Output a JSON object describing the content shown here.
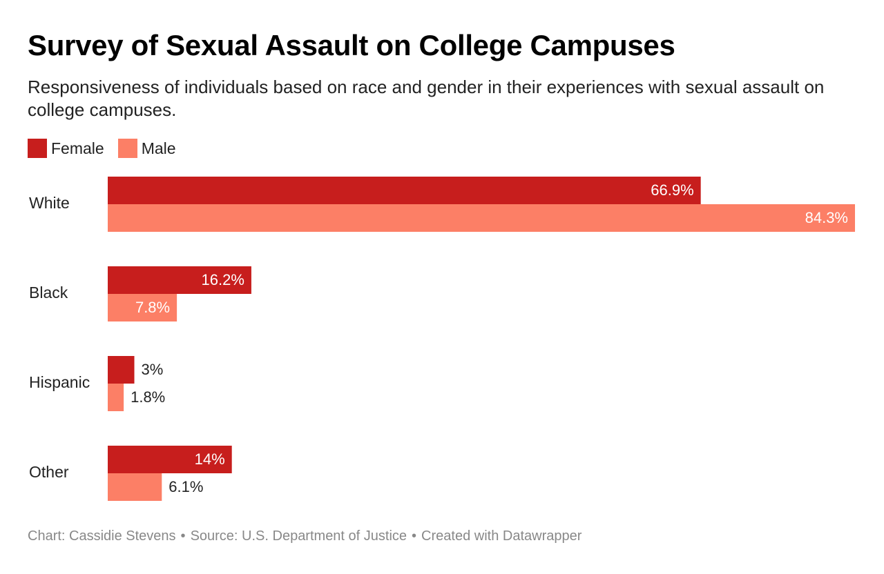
{
  "header": {
    "title": "Survey of Sexual Assault on College Campuses",
    "subtitle": "Responsiveness of individuals based on race and gender in their experiences with sexual assault on college campuses."
  },
  "colors": {
    "female": "#c71e1d",
    "male": "#fc7f66",
    "label_inside": "#ffffff",
    "label_outside": "#222222",
    "footer": "#888888"
  },
  "chart_data": {
    "type": "bar",
    "orientation": "horizontal",
    "grouped": true,
    "categories": [
      "White",
      "Black",
      "Hispanic",
      "Other"
    ],
    "series": [
      {
        "name": "Female",
        "values": [
          66.9,
          16.2,
          3,
          14
        ],
        "labels": [
          "66.9%",
          "16.2%",
          "3%",
          "14%"
        ]
      },
      {
        "name": "Male",
        "values": [
          84.3,
          7.8,
          1.8,
          6.1
        ],
        "labels": [
          "84.3%",
          "7.8%",
          "1.8%",
          "6.1%"
        ]
      }
    ],
    "xlim": [
      0,
      84.3
    ],
    "legend": "top-left",
    "grid": false
  },
  "footer": {
    "chart_credit": "Chart: Cassidie Stevens",
    "source": "Source: U.S. Department of Justice",
    "created_with": "Created with Datawrapper"
  }
}
